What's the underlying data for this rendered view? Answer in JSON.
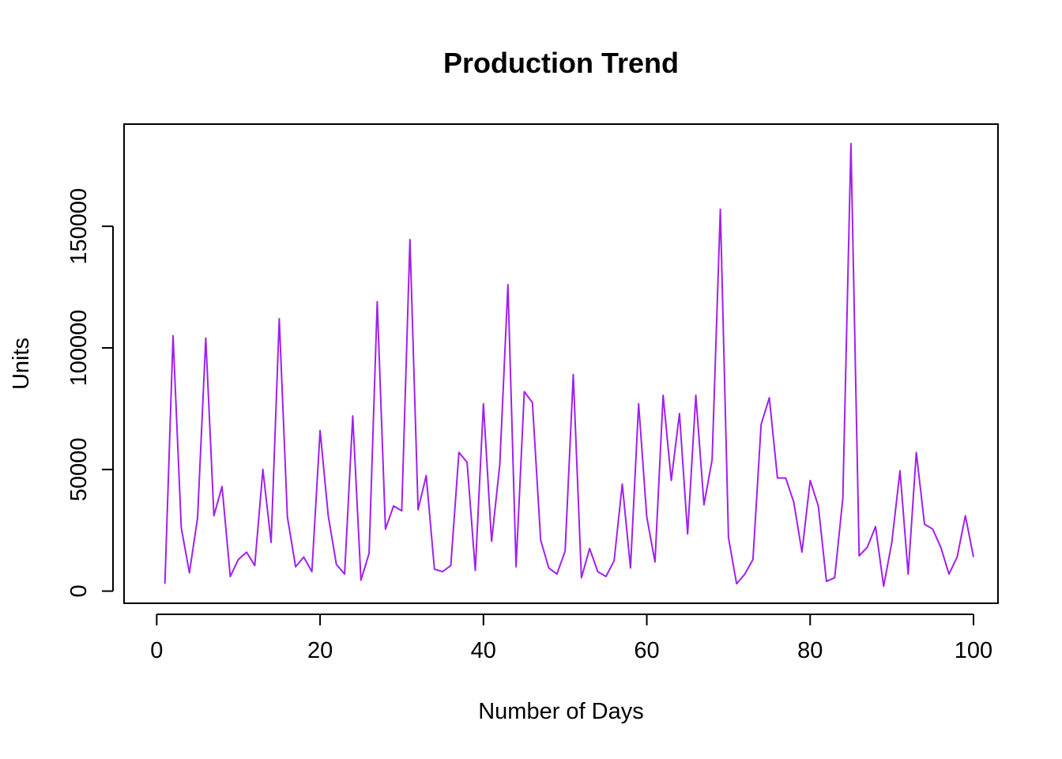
{
  "chart_data": {
    "type": "line",
    "title": "Production Trend",
    "xlabel": "Number of Days",
    "ylabel": "Units",
    "xlim": [
      -4,
      103
    ],
    "ylim": [
      -5000,
      192000
    ],
    "x_ticks": [
      0,
      20,
      40,
      60,
      80,
      100
    ],
    "y_ticks": [
      0,
      50000,
      100000,
      150000
    ],
    "x_tick_labels": [
      "0",
      "20",
      "40",
      "60",
      "80",
      "100"
    ],
    "y_tick_labels": [
      "0",
      "50000",
      "100000",
      "150000"
    ],
    "grid": false,
    "legend": "none",
    "line_color": "#a020f0",
    "series": [
      {
        "x": [
          1,
          2,
          3,
          4,
          5,
          6,
          7,
          8,
          9,
          10,
          11,
          12,
          13,
          14,
          15,
          16,
          17,
          18,
          19,
          20,
          21,
          22,
          23,
          24,
          25,
          26,
          27,
          28,
          29,
          30,
          31,
          32,
          33,
          34,
          35,
          36,
          37,
          38,
          39,
          40,
          41,
          42,
          43,
          44,
          45,
          46,
          47,
          48,
          49,
          50,
          51,
          52,
          53,
          54,
          55,
          56,
          57,
          58,
          59,
          60,
          61,
          62,
          63,
          64,
          65,
          66,
          67,
          68,
          69,
          70,
          71,
          72,
          73,
          74,
          75,
          76,
          77,
          78,
          79,
          80,
          81,
          82,
          83,
          84,
          85,
          86,
          87,
          88,
          89,
          90,
          91,
          92,
          93,
          94,
          95,
          96,
          97,
          98,
          99,
          100
        ],
        "values": [
          3000,
          105000,
          26000,
          7500,
          30000,
          104000,
          31000,
          43000,
          6000,
          13000,
          16000,
          10500,
          50000,
          20000,
          112000,
          30500,
          10000,
          14000,
          8000,
          66000,
          31000,
          11000,
          7000,
          72000,
          4500,
          15500,
          119000,
          25500,
          35000,
          33000,
          144500,
          33500,
          47500,
          9000,
          8000,
          10500,
          57000,
          53000,
          8500,
          77000,
          20500,
          52000,
          126000,
          10000,
          82000,
          77500,
          21000,
          9500,
          7000,
          16500,
          89000,
          5500,
          17500,
          8000,
          6000,
          12500,
          44000,
          9500,
          77000,
          30500,
          12000,
          80500,
          45500,
          73000,
          23500,
          80500,
          35500,
          54000,
          157000,
          22000,
          3000,
          7000,
          13000,
          68500,
          79500,
          46500,
          46500,
          36500,
          16000,
          45500,
          35000,
          4000,
          5500,
          38000,
          184000,
          14500,
          18000,
          26500,
          2000,
          20000,
          49500,
          7000,
          57000,
          27500,
          25500,
          18000,
          7000,
          14000,
          31000,
          14000
        ]
      }
    ]
  }
}
